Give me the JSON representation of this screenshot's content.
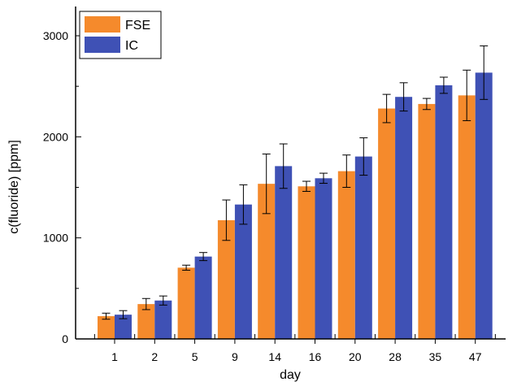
{
  "chart_data": {
    "type": "bar",
    "title": "",
    "xlabel": "day",
    "ylabel": "c(fluoride) [ppm]",
    "categories": [
      "1",
      "2",
      "5",
      "9",
      "14",
      "16",
      "20",
      "28",
      "35",
      "47"
    ],
    "ylim": [
      0,
      3250
    ],
    "yticks": [
      0,
      1000,
      2000,
      3000
    ],
    "grid": false,
    "legend_position": "top-left",
    "series": [
      {
        "name": "FSE",
        "color": "#f58a2c",
        "values": [
          225,
          345,
          705,
          1175,
          1535,
          1510,
          1660,
          2280,
          2325,
          2410
        ],
        "errors": [
          30,
          55,
          25,
          200,
          295,
          50,
          160,
          140,
          55,
          250
        ]
      },
      {
        "name": "IC",
        "color": "#3f51b5",
        "values": [
          240,
          380,
          815,
          1330,
          1710,
          1590,
          1805,
          2395,
          2510,
          2635
        ],
        "errors": [
          40,
          45,
          40,
          195,
          220,
          50,
          185,
          140,
          80,
          265
        ]
      }
    ]
  }
}
